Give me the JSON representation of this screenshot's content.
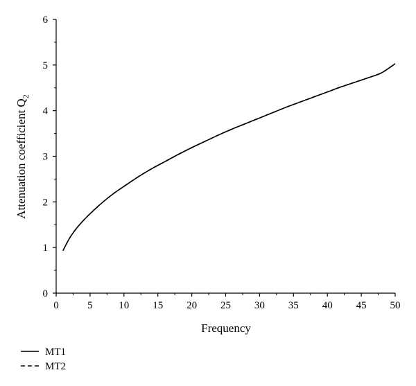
{
  "chart_data": {
    "type": "line",
    "title": "",
    "xlabel": "Frequency",
    "ylabel_main": "Attenuation coefficient Q",
    "ylabel_subscript": "2",
    "xlim": [
      0,
      50
    ],
    "ylim": [
      0,
      6
    ],
    "xticks": [
      0,
      5,
      10,
      15,
      20,
      25,
      30,
      35,
      40,
      45,
      50
    ],
    "yticks": [
      0,
      1,
      2,
      3,
      4,
      5,
      6
    ],
    "grid": false,
    "legend_position": "bottom-left",
    "series": [
      {
        "name": "MT1",
        "style": "solid",
        "color": "#000000",
        "x": [
          1,
          2,
          3,
          4,
          5,
          6,
          7,
          8,
          9,
          10,
          12,
          14,
          16,
          18,
          20,
          22,
          24,
          26,
          28,
          30,
          32,
          34,
          36,
          38,
          40,
          42,
          44,
          46,
          48,
          50
        ],
        "y": [
          0.93,
          1.21,
          1.42,
          1.59,
          1.74,
          1.88,
          2.01,
          2.13,
          2.24,
          2.34,
          2.54,
          2.72,
          2.88,
          3.04,
          3.19,
          3.33,
          3.47,
          3.6,
          3.72,
          3.84,
          3.96,
          4.08,
          4.19,
          4.3,
          4.41,
          4.52,
          4.62,
          4.72,
          4.83,
          5.03
        ]
      },
      {
        "name": "MT2",
        "style": "dashed",
        "color": "#000000",
        "x": [
          1,
          2,
          3,
          4,
          5,
          6,
          7,
          8,
          9,
          10,
          12,
          14,
          16,
          18,
          20,
          22,
          24,
          26,
          28,
          30,
          32,
          34,
          36,
          38,
          40,
          42,
          44,
          46,
          48,
          50
        ],
        "y": [
          0.93,
          1.21,
          1.42,
          1.59,
          1.74,
          1.88,
          2.01,
          2.13,
          2.24,
          2.34,
          2.54,
          2.72,
          2.88,
          3.04,
          3.19,
          3.33,
          3.47,
          3.6,
          3.72,
          3.84,
          3.96,
          4.08,
          4.19,
          4.3,
          4.41,
          4.52,
          4.62,
          4.72,
          4.83,
          5.03
        ]
      }
    ]
  }
}
